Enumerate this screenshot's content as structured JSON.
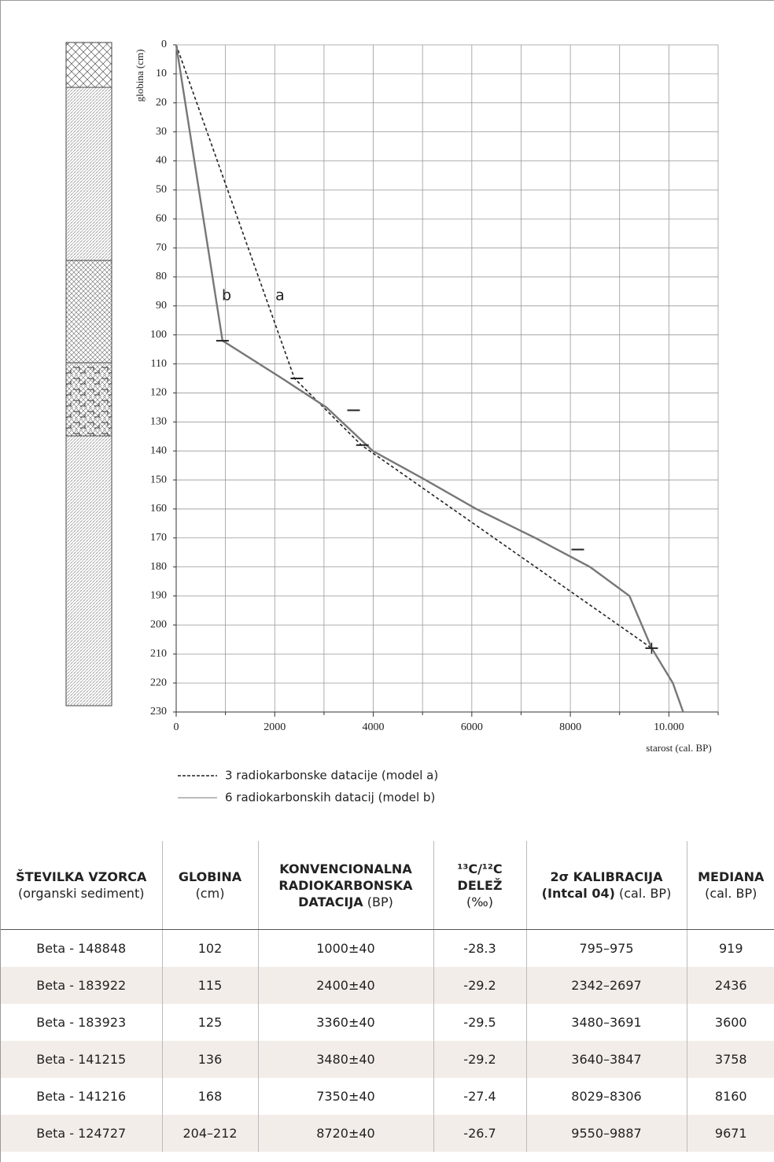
{
  "chart_data": {
    "type": "line",
    "x_label": "starost (cal. BP)",
    "y_label": "globina (cm)",
    "xlim": [
      0,
      11000
    ],
    "ylim": [
      0,
      230
    ],
    "y_inverted": true,
    "xticks": [
      0,
      2000,
      4000,
      6000,
      8000,
      {
        "value": 10000,
        "label": "10.000"
      }
    ],
    "x_minor_grid": [
      1000,
      3000,
      5000,
      7000,
      9000,
      11000
    ],
    "yticks": [
      0,
      10,
      20,
      30,
      40,
      50,
      60,
      70,
      80,
      90,
      100,
      110,
      120,
      130,
      140,
      150,
      160,
      170,
      180,
      190,
      200,
      210,
      220,
      230
    ],
    "grid": true,
    "series": [
      {
        "name": "3 radiokarbonske datacije (model a)",
        "color": "#222222",
        "dashed": true,
        "x": [
          0,
          2400,
          3760,
          9650
        ],
        "values": [
          0,
          115,
          138,
          208
        ]
      },
      {
        "name": "6 radiokarbonskih datacij (model b)",
        "color": "#777777",
        "dashed": false,
        "x": [
          0,
          940,
          2150,
          3050,
          3990,
          5060,
          6090,
          7290,
          8400,
          9200,
          9650,
          10080,
          10290
        ],
        "values": [
          0,
          102,
          115,
          125,
          140,
          150,
          160,
          170,
          180,
          190,
          208,
          220,
          230
        ]
      }
    ],
    "markers": {
      "color": "#222222",
      "x": [
        940,
        2450,
        3600,
        3780,
        8150,
        9650
      ],
      "values": [
        102,
        115,
        126,
        138,
        174,
        208
      ],
      "shapes": [
        "dash",
        "dash",
        "dash",
        "dash",
        "dash",
        "plus"
      ]
    },
    "annotations": [
      "b",
      "a"
    ]
  },
  "table": {
    "header": [
      {
        "bold": "ŠTEVILKA VZORCA",
        "plain": "(organski sediment)"
      },
      {
        "bold": "GLOBINA",
        "plain": "(cm)"
      },
      {
        "bold": "KONVENCIONALNA RADIOKARBONSKA DATACIJA",
        "plain": "(BP)"
      },
      {
        "bold": "¹³C/¹²C DELEŽ",
        "plain": "(‰)"
      },
      {
        "bold": "2σ KALIBRACIJA (Intcal 04)",
        "plain": "(cal. BP)"
      },
      {
        "bold": "MEDIANA",
        "plain": "(cal. BP)"
      }
    ],
    "rows": [
      [
        "Beta - 148848",
        "102",
        "1000±40",
        "-28.3",
        "795–975",
        "919"
      ],
      [
        "Beta - 183922",
        "115",
        "2400±40",
        "-29.2",
        "2342–2697",
        "2436"
      ],
      [
        "Beta - 183923",
        "125",
        "3360±40",
        "-29.5",
        "3480–3691",
        "3600"
      ],
      [
        "Beta - 141215",
        "136",
        "3480±40",
        "-29.2",
        "3640–3847",
        "3758"
      ],
      [
        "Beta - 141216",
        "168",
        "7350±40",
        "-27.4",
        "8029–8306",
        "8160"
      ],
      [
        "Beta - 124727",
        "204–212",
        "8720±40",
        "-26.7",
        "9550–9887",
        "9671"
      ]
    ]
  }
}
